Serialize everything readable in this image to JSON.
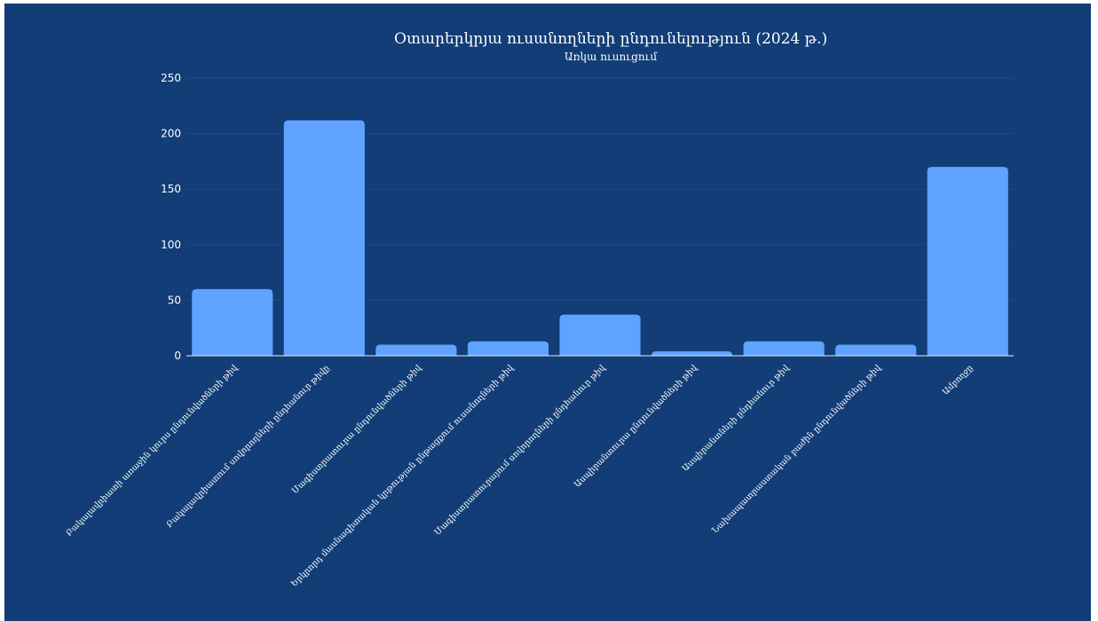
{
  "chart_data": {
    "type": "bar",
    "title": "Օտարերկրյա ուսանողների ընդունելություն (2024 թ.)",
    "subtitle": "Առկա ուսուցում",
    "categories": [
      "Բակալավրիատի առաջին կուրս ընդունվածների թիվ",
      "Բակալավրիատում սովորողների ընդհանուր թիվը",
      "Մագիստրատուրա ընդունվածների թիվ",
      "Երկրորդ մասնագիտական կրթության ընթացքում ուսանողների թիվ",
      "Մագիստրատուրայում սովորողների ընդհանուր թիվ",
      "Ասպիրանտուրա ընդունվածների թիվ",
      "Ասպիրանտների ընդհանուր թիվ",
      "Նախապատրաստական բաժին ընդունվածների թիվ",
      "Ամբողջը"
    ],
    "values": [
      60,
      212,
      10,
      13,
      37,
      4,
      13,
      10,
      170
    ],
    "ylim": [
      0,
      250
    ],
    "yticks": [
      0,
      50,
      100,
      150,
      200,
      250
    ],
    "xlabel": "",
    "ylabel": "",
    "grid": true,
    "colors": {
      "background": "#123d77",
      "bar": "#5fa2ff",
      "grid": "#1e4a86",
      "text": "#ffffff"
    }
  }
}
